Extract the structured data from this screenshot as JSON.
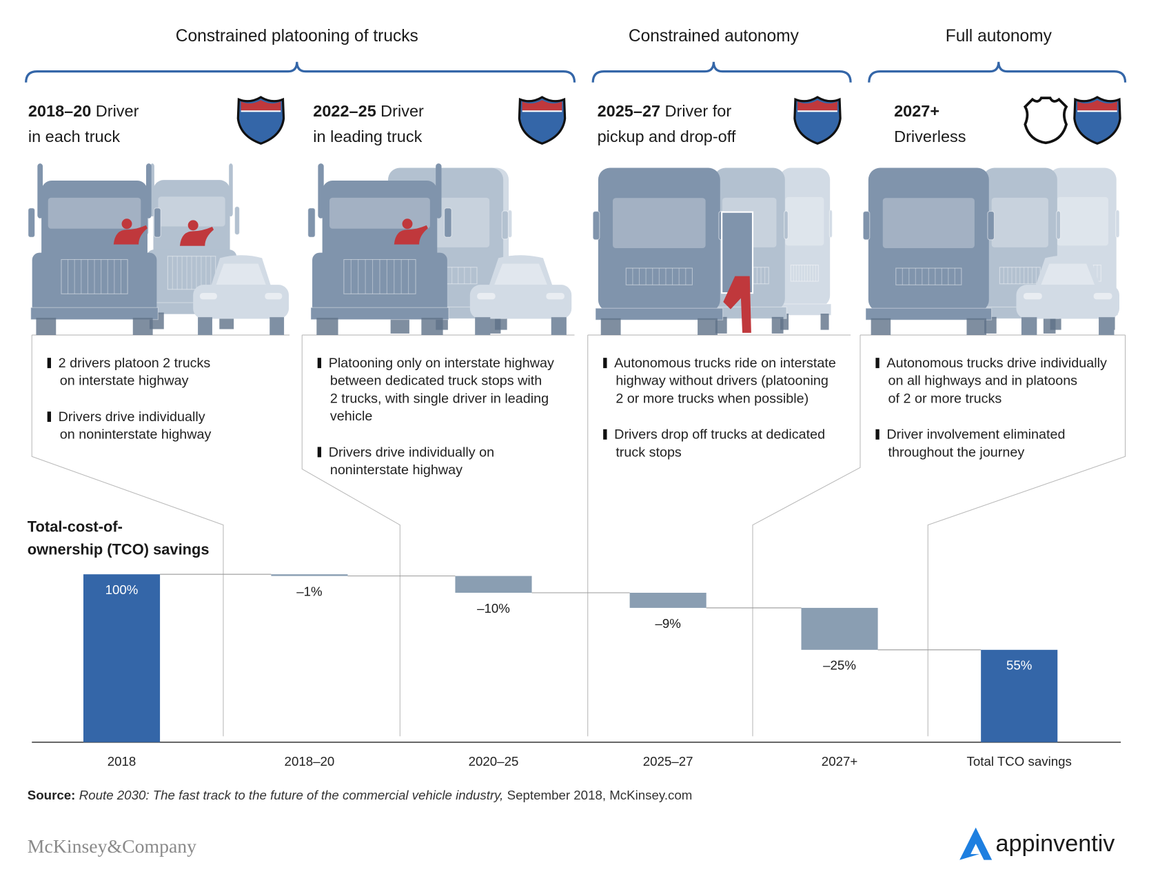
{
  "phases": [
    "Constrained platooning of trucks",
    "Constrained autonomy",
    "Full autonomy"
  ],
  "stages": [
    {
      "year": "2018–20",
      "title_lines": [
        "Driver",
        "in each truck"
      ],
      "bullets": [
        [
          "2 drivers platoon 2 trucks",
          "on interstate highway"
        ],
        [
          "Drivers drive individually",
          "on noninterstate highway"
        ]
      ]
    },
    {
      "year": "2022–25",
      "title_lines": [
        "Driver",
        "in leading truck"
      ],
      "bullets": [
        [
          "Platooning only on interstate highway",
          "between dedicated truck stops with",
          "2 trucks, with single driver in leading",
          "vehicle"
        ],
        [
          "Drivers drive individually on",
          "noninterstate highway"
        ]
      ]
    },
    {
      "year": "2025–27",
      "title_lines": [
        "Driver for",
        "pickup and drop-off"
      ],
      "bullets": [
        [
          "Autonomous trucks ride on interstate",
          "highway without drivers (platooning",
          "2 or more trucks when possible)"
        ],
        [
          "Drivers drop off trucks at dedicated",
          "truck stops"
        ]
      ]
    },
    {
      "year": "2027+",
      "title_lines": [
        "Driverless"
      ],
      "bullets": [
        [
          "Autonomous trucks drive individually",
          "on all highways and in platoons",
          "of 2 or more trucks"
        ],
        [
          "Driver involvement eliminated",
          "throughout the journey"
        ]
      ]
    }
  ],
  "chart_data": {
    "type": "waterfall",
    "title_lines": [
      "Total-cost-of-",
      "ownership (TCO) savings"
    ],
    "categories": [
      "2018",
      "2018–20",
      "2020–25",
      "2025–27",
      "2027+",
      "Total TCO savings"
    ],
    "values": [
      100,
      -1,
      -10,
      -9,
      -25,
      55
    ],
    "value_labels": [
      "100%",
      "–1%",
      "–10%",
      "–9%",
      "–25%",
      "55%"
    ],
    "is_total": [
      true,
      false,
      false,
      false,
      false,
      true
    ],
    "total_color": "#3466a8",
    "delta_color": "#8a9eb2"
  },
  "source": {
    "label": "Source:",
    "title": "Route 2030: The fast track to the future of the commercial vehicle industry,",
    "details": "September 2018, McKinsey.com"
  },
  "footer": {
    "left": "McKinsey&Company",
    "right": "appinventiv"
  }
}
